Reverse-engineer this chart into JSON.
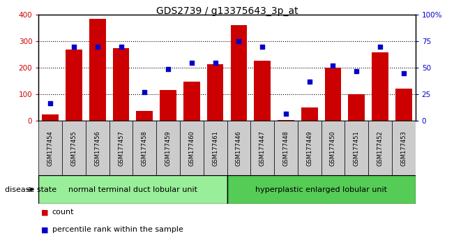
{
  "title": "GDS2739 / g13375643_3p_at",
  "samples": [
    "GSM177454",
    "GSM177455",
    "GSM177456",
    "GSM177457",
    "GSM177458",
    "GSM177459",
    "GSM177460",
    "GSM177461",
    "GSM177446",
    "GSM177447",
    "GSM177448",
    "GSM177449",
    "GSM177450",
    "GSM177451",
    "GSM177452",
    "GSM177453"
  ],
  "counts": [
    25,
    270,
    385,
    275,
    38,
    118,
    148,
    215,
    360,
    228,
    5,
    52,
    200,
    102,
    258,
    122
  ],
  "percentiles": [
    17,
    70,
    70,
    70,
    27,
    49,
    55,
    55,
    75,
    70,
    7,
    37,
    52,
    47,
    70,
    45
  ],
  "group1_label": "normal terminal duct lobular unit",
  "group2_label": "hyperplastic enlarged lobular unit",
  "group1_count": 8,
  "group2_count": 8,
  "bar_color": "#cc0000",
  "dot_color": "#0000cc",
  "ylim_left": [
    0,
    400
  ],
  "ylim_right": [
    0,
    100
  ],
  "yticks_left": [
    0,
    100,
    200,
    300,
    400
  ],
  "yticks_right": [
    0,
    25,
    50,
    75,
    100
  ],
  "yticklabels_right": [
    "0",
    "25",
    "50",
    "75",
    "100%"
  ],
  "legend_bar_label": "count",
  "legend_dot_label": "percentile rank within the sample",
  "group1_color": "#99ee99",
  "group2_color": "#55cc55",
  "bar_label_color": "#cc0000",
  "dot_label_color": "#0000cc",
  "title_fontsize": 10,
  "tick_fontsize": 7.5,
  "sample_fontsize": 6,
  "group_label_fontsize": 8,
  "legend_fontsize": 8,
  "disease_state_fontsize": 8
}
